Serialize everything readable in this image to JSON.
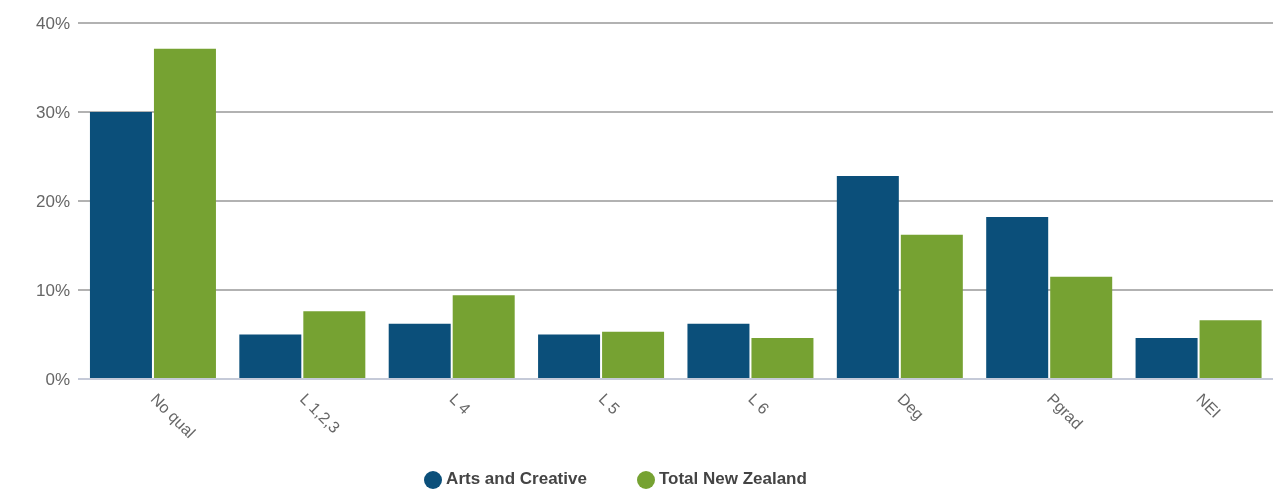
{
  "chart_data": {
    "type": "bar",
    "categories": [
      "No qual",
      "L 1,2,3",
      "L 4",
      "L 5",
      "L 6",
      "Deg",
      "Pgrad",
      "NEI"
    ],
    "series": [
      {
        "name": "Arts and Creative",
        "color": "#0b4f7a",
        "values": [
          30.0,
          5.0,
          6.2,
          5.0,
          6.2,
          22.8,
          18.2,
          4.6
        ]
      },
      {
        "name": "Total New Zealand",
        "color": "#76a232",
        "values": [
          37.1,
          7.6,
          9.4,
          5.3,
          4.6,
          16.2,
          11.5,
          6.6
        ]
      }
    ],
    "ylim": [
      0,
      40
    ],
    "yticks": [
      {
        "value": 0,
        "label": "0%"
      },
      {
        "value": 10,
        "label": "10%"
      },
      {
        "value": 20,
        "label": "20%"
      },
      {
        "value": 30,
        "label": "30%"
      },
      {
        "value": 40,
        "label": "40%"
      }
    ],
    "grid": "y",
    "legend": "bottom"
  }
}
